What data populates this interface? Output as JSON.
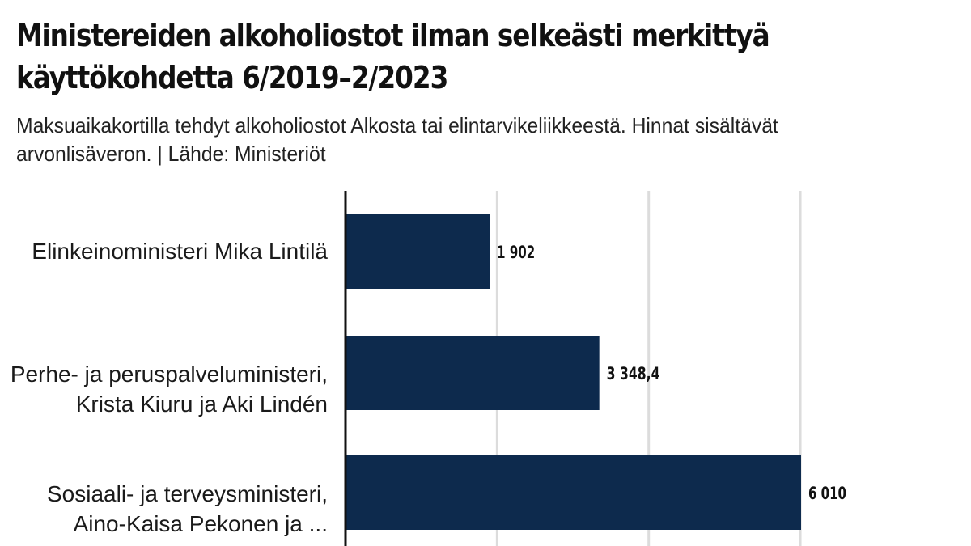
{
  "chart_data": {
    "type": "bar",
    "orientation": "horizontal",
    "title": "Ministereiden alkoholiostot ilman selkeästi merkittyä käyttökohdetta 6/2019–2/2023",
    "subtitle": "Maksuaikakortilla tehdyt alkoholiostot Alkosta tai elintarvikeliikkeestä. Hinnat sisältävät arvonlisäveron. | Lähde: Ministeriöt",
    "categories": [
      "Elinkeinoministeri Mika Lintilä",
      "Perhe- ja peruspalveluministeri, Krista Kiuru ja Aki Lindén",
      "Sosiaali- ja terveysministeri, Aino-Kaisa Pekonen ja ..."
    ],
    "values": [
      1902,
      3348.4,
      6010
    ],
    "value_labels": [
      "1 902",
      "3 348,4",
      "6 010"
    ],
    "xlim": [
      0,
      8000
    ],
    "grid": true,
    "bar_color": "#0d2a4d"
  }
}
